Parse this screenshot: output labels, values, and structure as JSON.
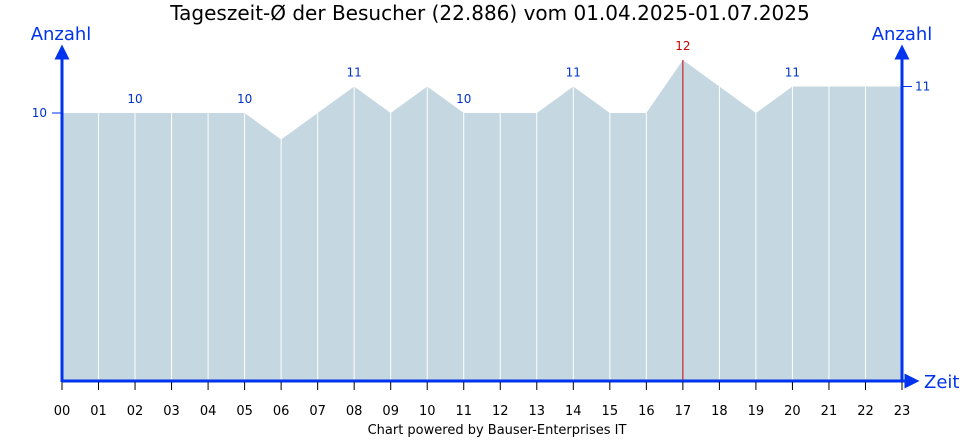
{
  "chart_data": {
    "type": "area",
    "title": "Tageszeit-Ø der Besucher (22.886) vom 01.04.2025-01.07.2025",
    "ylabel_left": "Anzahl",
    "ylabel_right": "Anzahl",
    "xlabel": "Zeit",
    "categories": [
      "00",
      "01",
      "02",
      "03",
      "04",
      "05",
      "06",
      "07",
      "08",
      "09",
      "10",
      "11",
      "12",
      "13",
      "14",
      "15",
      "16",
      "17",
      "18",
      "19",
      "20",
      "21",
      "22",
      "23"
    ],
    "values": [
      10,
      10,
      10,
      10,
      10,
      10,
      9,
      10,
      11,
      10,
      11,
      10,
      10,
      10,
      11,
      10,
      10,
      12,
      11,
      10,
      11,
      11,
      11,
      11
    ],
    "data_labels": [
      {
        "index": 2,
        "text": "10"
      },
      {
        "index": 5,
        "text": "10"
      },
      {
        "index": 8,
        "text": "11"
      },
      {
        "index": 11,
        "text": "10"
      },
      {
        "index": 14,
        "text": "11"
      },
      {
        "index": 17,
        "text": "12"
      },
      {
        "index": 20,
        "text": "11"
      }
    ],
    "max_index": 17,
    "ylim": [
      0,
      12
    ],
    "yticks_left": [
      "10"
    ],
    "ytick_left_value": 10,
    "yticks_right": [
      "11"
    ],
    "ytick_right_value": 11,
    "footer": "Chart powered by Bauser-Enterprises IT",
    "colors": {
      "axis": "#0033ee",
      "area_fill": "#c5d7e0",
      "gridline": "#ffffff",
      "max_line": "#cc0000",
      "max_label": "#cc0000",
      "data_label": "#0033cc"
    }
  }
}
